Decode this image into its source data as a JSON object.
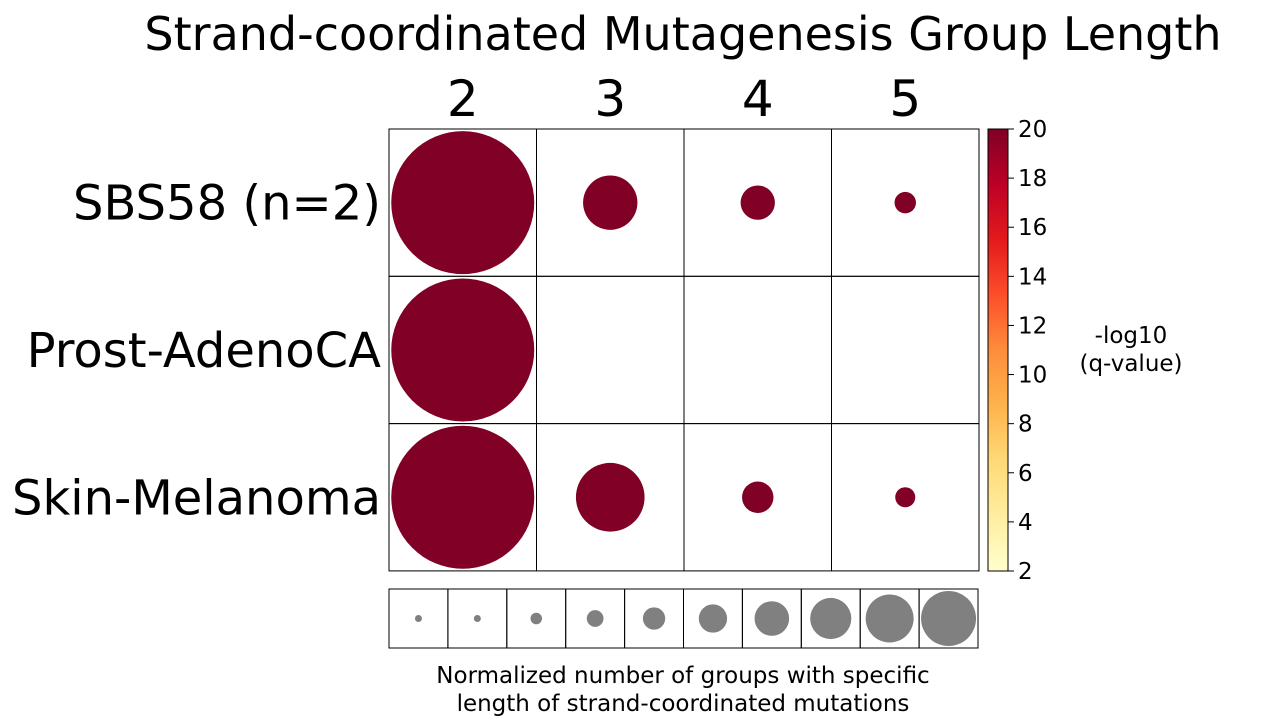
{
  "chart_data": {
    "type": "bubble-grid",
    "title": "Strand-coordinated Mutagenesis Group Length",
    "columns": [
      "2",
      "3",
      "4",
      "5"
    ],
    "rows": [
      "SBS58 (n=2)",
      "Prost-AdenoCA",
      "Skin-Melanoma"
    ],
    "cells": [
      [
        {
          "size": 1.0,
          "q": 20
        },
        {
          "size": 0.38,
          "q": 20
        },
        {
          "size": 0.24,
          "q": 20
        },
        {
          "size": 0.15,
          "q": 20
        }
      ],
      [
        {
          "size": 1.0,
          "q": 20
        },
        null,
        null,
        null
      ],
      [
        {
          "size": 1.0,
          "q": 20
        },
        {
          "size": 0.48,
          "q": 20
        },
        {
          "size": 0.22,
          "q": 20
        },
        {
          "size": 0.14,
          "q": 20
        }
      ]
    ],
    "colorbar": {
      "label_lines": [
        "-log10",
        "(q-value)"
      ],
      "min": 2,
      "max": 20,
      "ticks": [
        "2",
        "4",
        "6",
        "8",
        "10",
        "12",
        "14",
        "16",
        "18",
        "20"
      ],
      "colormap": [
        "#ffffcc",
        "#ffeda0",
        "#fed976",
        "#feb24c",
        "#fd8d3c",
        "#fc4e2a",
        "#e31a1c",
        "#bd0026",
        "#800026"
      ]
    },
    "size_legend": {
      "sizes": [
        0.1,
        0.2,
        0.3,
        0.4,
        0.5,
        0.6,
        0.7,
        0.8,
        0.9,
        1.0
      ],
      "color": "#808080",
      "caption_lines": [
        "Normalized number of groups with specific",
        "length of strand-coordinated mutations"
      ]
    }
  }
}
